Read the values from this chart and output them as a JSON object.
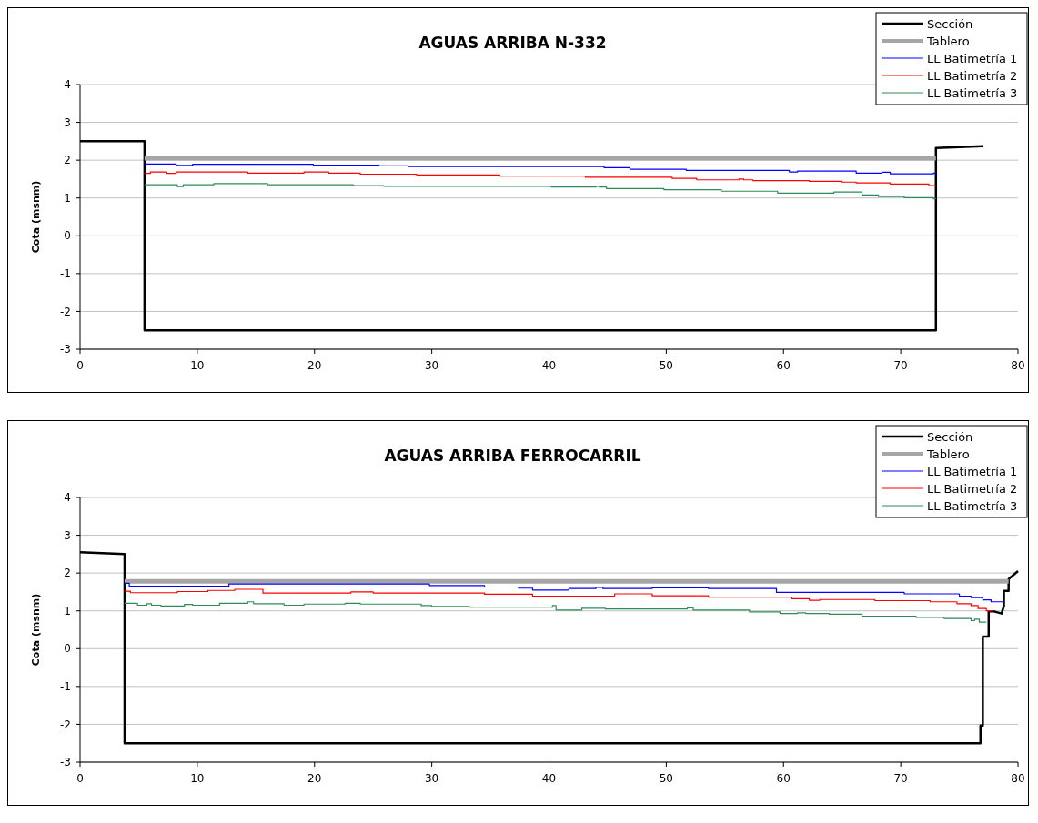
{
  "chart_data": [
    {
      "type": "line",
      "title": "AGUAS ARRIBA N-332",
      "ylabel": "Cota (msnm)",
      "xlim": [
        0,
        80
      ],
      "ylim": [
        -3,
        4
      ],
      "xticks": [
        0,
        10,
        20,
        30,
        40,
        50,
        60,
        70,
        80
      ],
      "yticks": [
        -3,
        -2,
        -1,
        0,
        1,
        2,
        3,
        4
      ],
      "grid": "y",
      "legend": "top right",
      "series": [
        {
          "name": "Sección",
          "color": "#000000",
          "x": [
            0,
            5.5,
            5.5,
            73,
            73,
            77
          ],
          "values": [
            2.5,
            2.5,
            -2.5,
            -2.5,
            2.32,
            2.37
          ]
        },
        {
          "name": "Tablero",
          "color": "#a6a6a6",
          "x": [
            5.5,
            73
          ],
          "values": [
            2.05,
            2.05
          ]
        },
        {
          "name": "LL Batimetría 1",
          "color": "#0000ff",
          "x": [
            5.5,
            8.2,
            8.2,
            9.6,
            9.6,
            19.9,
            19.9,
            25.5,
            25.5,
            28,
            28,
            44.7,
            44.7,
            46.9,
            46.9,
            51.7,
            51.7,
            60.5,
            60.5,
            61.2,
            61.2,
            66.2,
            66.2,
            68.4,
            68.4,
            69.1,
            69.1,
            72.8,
            72.8,
            73
          ],
          "values": [
            1.9,
            1.9,
            1.86,
            1.86,
            1.89,
            1.89,
            1.87,
            1.87,
            1.85,
            1.85,
            1.83,
            1.83,
            1.8,
            1.8,
            1.76,
            1.76,
            1.73,
            1.73,
            1.69,
            1.69,
            1.71,
            1.71,
            1.66,
            1.66,
            1.68,
            1.68,
            1.64,
            1.64,
            1.66,
            1.66
          ]
        },
        {
          "name": "LL Batimetría 2",
          "color": "#ff0000",
          "x": [
            5.5,
            6,
            6,
            7.4,
            7.4,
            8.2,
            8.2,
            14.3,
            14.3,
            19.1,
            19.1,
            21.2,
            21.2,
            23.9,
            23.9,
            28.7,
            28.7,
            35.8,
            35.8,
            43.1,
            43.1,
            50.5,
            50.5,
            52.6,
            52.6,
            56.2,
            56.2,
            56.6,
            56.6,
            57.4,
            57.4,
            62.2,
            62.2,
            65,
            65,
            66.2,
            66.2,
            69.1,
            69.1,
            72.4,
            72.4,
            73
          ],
          "values": [
            1.65,
            1.65,
            1.69,
            1.69,
            1.65,
            1.65,
            1.69,
            1.69,
            1.66,
            1.66,
            1.69,
            1.69,
            1.66,
            1.66,
            1.63,
            1.63,
            1.61,
            1.61,
            1.58,
            1.58,
            1.55,
            1.55,
            1.52,
            1.52,
            1.48,
            1.48,
            1.5,
            1.5,
            1.48,
            1.48,
            1.46,
            1.46,
            1.44,
            1.44,
            1.42,
            1.42,
            1.4,
            1.4,
            1.37,
            1.37,
            1.33,
            1.33
          ]
        },
        {
          "name": "LL Batimetría 3",
          "color": "#2e8b57",
          "x": [
            5.5,
            8.3,
            8.3,
            8.8,
            8.8,
            11.4,
            11.4,
            16,
            16,
            23.3,
            23.3,
            25.9,
            25.9,
            40.2,
            40.2,
            44,
            44,
            44.3,
            44.3,
            44.9,
            44.9,
            49.8,
            49.8,
            54.7,
            54.7,
            59.5,
            59.5,
            64.3,
            64.3,
            66.7,
            66.7,
            68.1,
            68.1,
            70.3,
            70.3,
            72.8,
            72.8,
            73
          ],
          "values": [
            1.35,
            1.35,
            1.3,
            1.3,
            1.35,
            1.35,
            1.38,
            1.38,
            1.35,
            1.35,
            1.33,
            1.33,
            1.31,
            1.31,
            1.29,
            1.29,
            1.31,
            1.31,
            1.29,
            1.29,
            1.25,
            1.25,
            1.22,
            1.22,
            1.18,
            1.18,
            1.13,
            1.13,
            1.16,
            1.16,
            1.08,
            1.08,
            1.04,
            1.04,
            1.01,
            1.01,
            0.98,
            0.98
          ]
        }
      ]
    },
    {
      "type": "line",
      "title": "AGUAS ARRIBA FERROCARRIL",
      "ylabel": "Cota (msnm)",
      "xlim": [
        0,
        80
      ],
      "ylim": [
        -3,
        4
      ],
      "xticks": [
        0,
        10,
        20,
        30,
        40,
        50,
        60,
        70,
        80
      ],
      "yticks": [
        -3,
        -2,
        -1,
        0,
        1,
        2,
        3,
        4
      ],
      "grid": "y",
      "legend": "top right",
      "series": [
        {
          "name": "Sección",
          "color": "#000000",
          "x": [
            0,
            3.8,
            3.8,
            76.8,
            76.8,
            77,
            77,
            77.5,
            77.5,
            77.9,
            78.6,
            78.6,
            78.8,
            78.8,
            79.2,
            79.2,
            80
          ],
          "values": [
            2.55,
            2.5,
            -2.5,
            -2.5,
            -2.03,
            -2.03,
            0.32,
            0.32,
            0.99,
            0.99,
            0.93,
            0.93,
            1.13,
            1.53,
            1.53,
            1.84,
            2.05
          ]
        },
        {
          "name": "Tablero",
          "color": "#a6a6a6",
          "x": [
            3.8,
            79.2
          ],
          "values": [
            1.78,
            1.78
          ]
        },
        {
          "name": "LL Batimetría 1",
          "color": "#0000ff",
          "x": [
            3.8,
            4.2,
            4.2,
            12.7,
            12.7,
            29.8,
            29.8,
            34.5,
            34.5,
            37.4,
            37.4,
            38.6,
            38.6,
            41.7,
            41.7,
            44,
            44,
            44.6,
            44.6,
            48.8,
            48.8,
            53.6,
            53.6,
            59.4,
            59.4,
            70.3,
            70.3,
            75,
            75,
            76,
            76,
            77,
            77,
            77.7,
            77.7,
            78.8
          ],
          "values": [
            1.73,
            1.73,
            1.65,
            1.65,
            1.71,
            1.71,
            1.67,
            1.67,
            1.63,
            1.63,
            1.6,
            1.6,
            1.55,
            1.55,
            1.59,
            1.59,
            1.62,
            1.62,
            1.59,
            1.59,
            1.61,
            1.61,
            1.59,
            1.59,
            1.49,
            1.49,
            1.45,
            1.45,
            1.39,
            1.39,
            1.35,
            1.35,
            1.29,
            1.29,
            1.24,
            1.24
          ]
        },
        {
          "name": "LL Batimetría 2",
          "color": "#ff0000",
          "x": [
            3.8,
            4.3,
            4.3,
            8.3,
            8.3,
            10.9,
            10.9,
            13.2,
            13.2,
            15.6,
            15.6,
            23.1,
            23.1,
            25,
            25,
            34.5,
            34.5,
            38.6,
            38.6,
            45.6,
            45.6,
            48.8,
            48.8,
            53.6,
            53.6,
            60.7,
            60.7,
            62.2,
            62.2,
            63.1,
            63.1,
            67.8,
            67.8,
            72.5,
            72.5,
            74.8,
            74.8,
            76,
            76,
            76.6,
            76.6,
            77.3,
            77.3,
            77.9
          ],
          "values": [
            1.52,
            1.52,
            1.48,
            1.48,
            1.51,
            1.51,
            1.54,
            1.54,
            1.57,
            1.57,
            1.47,
            1.47,
            1.5,
            1.5,
            1.47,
            1.47,
            1.44,
            1.44,
            1.39,
            1.39,
            1.45,
            1.45,
            1.4,
            1.4,
            1.36,
            1.36,
            1.32,
            1.32,
            1.28,
            1.28,
            1.3,
            1.3,
            1.27,
            1.27,
            1.24,
            1.24,
            1.19,
            1.19,
            1.14,
            1.14,
            1.06,
            1.06,
            1,
            1
          ]
        },
        {
          "name": "LL Batimetría 3",
          "color": "#2e8b57",
          "x": [
            3.8,
            4.9,
            4.9,
            5.7,
            5.7,
            6.1,
            6.1,
            6.9,
            6.9,
            8.9,
            8.9,
            9.6,
            9.6,
            11.9,
            11.9,
            14.3,
            14.3,
            14.8,
            14.8,
            17.4,
            17.4,
            19.1,
            19.1,
            22.6,
            22.6,
            23.9,
            23.9,
            29.1,
            29.1,
            30,
            30,
            33.2,
            33.2,
            40.3,
            40.3,
            40.6,
            40.6,
            42.8,
            42.8,
            44.8,
            44.8,
            51.8,
            51.8,
            52.3,
            52.3,
            57.1,
            57.1,
            59.7,
            59.7,
            61.2,
            61.2,
            61.9,
            61.9,
            63.9,
            63.9,
            66.7,
            66.7,
            71.3,
            71.3,
            73.7,
            73.7,
            76,
            76,
            76.3,
            76.3,
            76.7,
            76.7,
            77.3
          ],
          "values": [
            1.2,
            1.2,
            1.15,
            1.15,
            1.19,
            1.19,
            1.15,
            1.15,
            1.13,
            1.13,
            1.17,
            1.17,
            1.15,
            1.15,
            1.2,
            1.2,
            1.24,
            1.24,
            1.19,
            1.19,
            1.15,
            1.15,
            1.18,
            1.18,
            1.2,
            1.2,
            1.18,
            1.18,
            1.14,
            1.14,
            1.12,
            1.12,
            1.1,
            1.1,
            1.14,
            1.14,
            1.02,
            1.02,
            1.07,
            1.07,
            1.05,
            1.05,
            1.08,
            1.08,
            1.02,
            1.02,
            0.97,
            0.97,
            0.93,
            0.93,
            0.95,
            0.95,
            0.93,
            0.93,
            0.91,
            0.91,
            0.86,
            0.86,
            0.83,
            0.83,
            0.8,
            0.8,
            0.74,
            0.74,
            0.78,
            0.78,
            0.7,
            0.7
          ]
        }
      ]
    }
  ]
}
